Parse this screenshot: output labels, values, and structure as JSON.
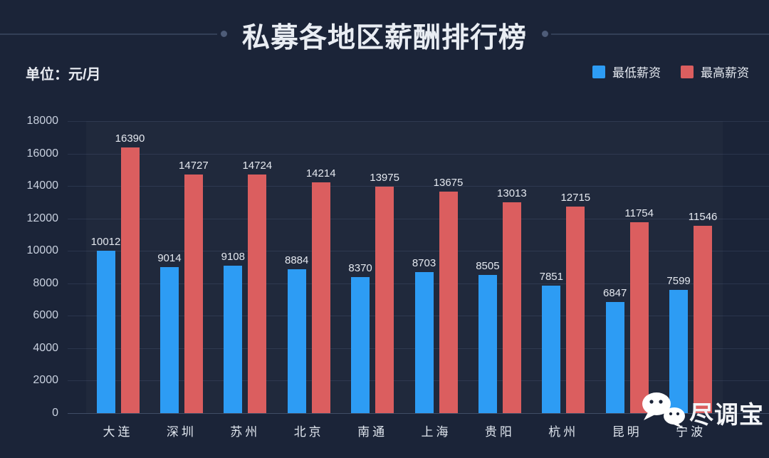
{
  "header": {
    "title": "私募各地区薪酬排行榜",
    "unit_label": "单位：元/月"
  },
  "legend": {
    "items": [
      {
        "label": "最低薪资",
        "color": "#2D9CF4"
      },
      {
        "label": "最高薪资",
        "color": "#DB5E5F"
      }
    ]
  },
  "chart_data": {
    "type": "bar",
    "title": "私募各地区薪酬排行榜",
    "unit": "元/月",
    "categories": [
      "大连",
      "深圳",
      "苏州",
      "北京",
      "南通",
      "上海",
      "贵阳",
      "杭州",
      "昆明",
      "宁波"
    ],
    "series": [
      {
        "name": "最低薪资",
        "color": "#2D9CF4",
        "values": [
          10012,
          9014,
          9108,
          8884,
          8370,
          8703,
          8505,
          7851,
          6847,
          7599
        ]
      },
      {
        "name": "最高薪资",
        "color": "#DB5E5F",
        "values": [
          16390,
          14727,
          14724,
          14214,
          13975,
          13675,
          13013,
          12715,
          11754,
          11546
        ]
      }
    ],
    "ylim": [
      0,
      18000
    ],
    "ytick_step": 2000,
    "grid": true,
    "legend_position": "top-right"
  },
  "watermark": {
    "text": "尽调宝",
    "icon": "wechat-icon"
  },
  "colors": {
    "background": "#1B2438",
    "bar_min": "#2D9CF4",
    "bar_max": "#DB5E5F",
    "title_text": "#E9EDF3",
    "axis_text": "#C9D1DF",
    "value_label_text": "#E4E8EF",
    "gridline": "#2A3550",
    "deco_line": "#333F57",
    "deco_dot": "#4E5C78",
    "watermark_text": "#F3F5F8"
  }
}
